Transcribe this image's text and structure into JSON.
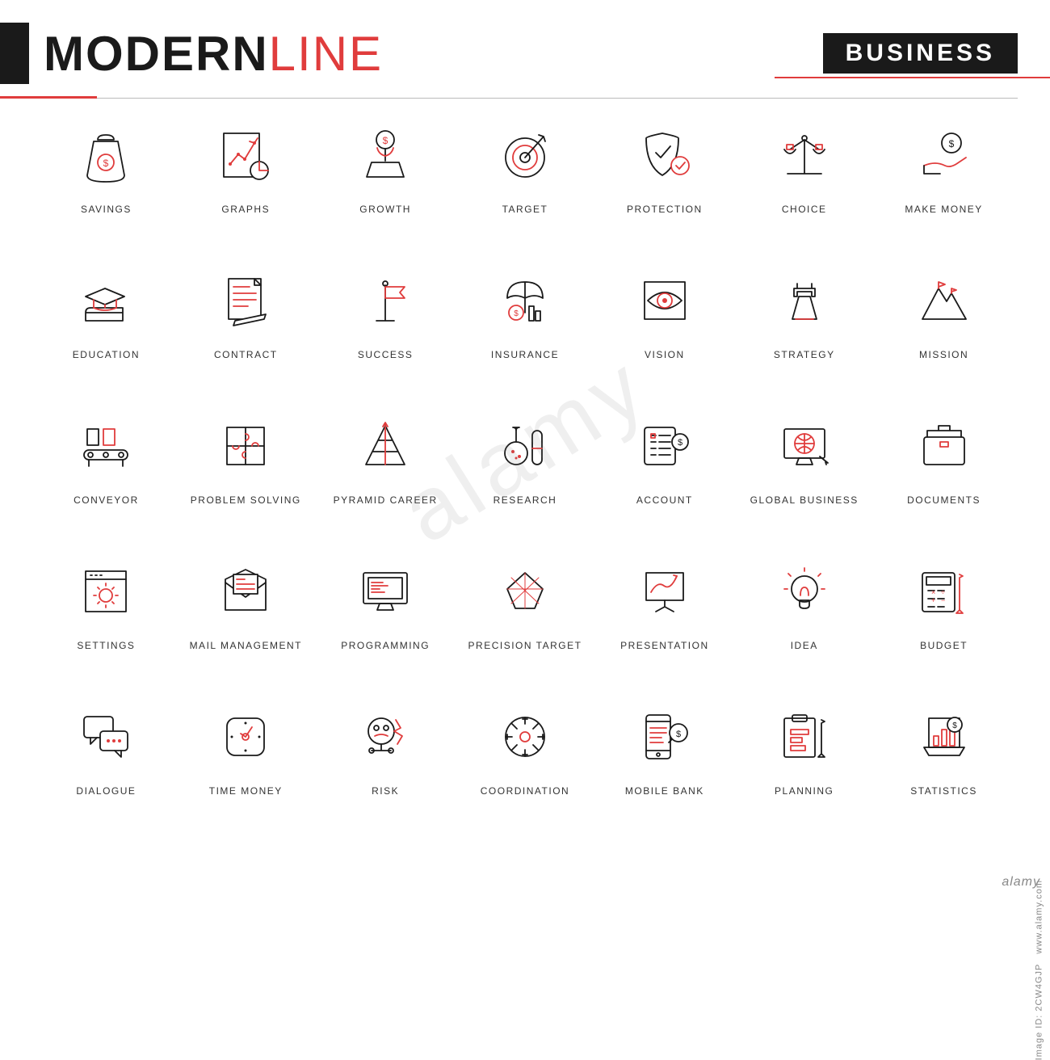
{
  "header": {
    "title_part1": "MODERN",
    "title_part2": "LINE",
    "badge": "BUSINESS"
  },
  "colors": {
    "black": "#1a1a1a",
    "red": "#e03c3c",
    "background": "#ffffff",
    "label": "#333333"
  },
  "stroke_width": 1.8,
  "grid": {
    "cols": 7,
    "rows": 5
  },
  "icons": [
    {
      "id": "savings-icon",
      "label": "SAVINGS"
    },
    {
      "id": "graphs-icon",
      "label": "GRAPHS"
    },
    {
      "id": "growth-icon",
      "label": "GROWTH"
    },
    {
      "id": "target-icon",
      "label": "TARGET"
    },
    {
      "id": "protection-icon",
      "label": "PROTECTION"
    },
    {
      "id": "choice-icon",
      "label": "CHOICE"
    },
    {
      "id": "make-money-icon",
      "label": "MAKE MONEY"
    },
    {
      "id": "education-icon",
      "label": "EDUCATION"
    },
    {
      "id": "contract-icon",
      "label": "CONTRACT"
    },
    {
      "id": "success-icon",
      "label": "SUCCESS"
    },
    {
      "id": "insurance-icon",
      "label": "INSURANCE"
    },
    {
      "id": "vision-icon",
      "label": "VISION"
    },
    {
      "id": "strategy-icon",
      "label": "STRATEGY"
    },
    {
      "id": "mission-icon",
      "label": "MISSION"
    },
    {
      "id": "conveyor-icon",
      "label": "CONVEYOR"
    },
    {
      "id": "problem-solving-icon",
      "label": "PROBLEM SOLVING"
    },
    {
      "id": "pyramid-career-icon",
      "label": "PYRAMID CAREER"
    },
    {
      "id": "research-icon",
      "label": "RESEARCH"
    },
    {
      "id": "account-icon",
      "label": "ACCOUNT"
    },
    {
      "id": "global-business-icon",
      "label": "GLOBAL BUSINESS"
    },
    {
      "id": "documents-icon",
      "label": "DOCUMENTS"
    },
    {
      "id": "settings-icon",
      "label": "SETTINGS"
    },
    {
      "id": "mail-management-icon",
      "label": "MAIL MANAGEMENT"
    },
    {
      "id": "programming-icon",
      "label": "PROGRAMMING"
    },
    {
      "id": "precision-target-icon",
      "label": "PRECISION TARGET"
    },
    {
      "id": "presentation-icon",
      "label": "PRESENTATION"
    },
    {
      "id": "idea-icon",
      "label": "IDEA"
    },
    {
      "id": "budget-icon",
      "label": "BUDGET"
    },
    {
      "id": "dialogue-icon",
      "label": "DIALOGUE"
    },
    {
      "id": "time-money-icon",
      "label": "TIME MONEY"
    },
    {
      "id": "risk-icon",
      "label": "RISK"
    },
    {
      "id": "coordination-icon",
      "label": "COORDINATION"
    },
    {
      "id": "mobile-bank-icon",
      "label": "MOBILE BANK"
    },
    {
      "id": "planning-icon",
      "label": "PLANNING"
    },
    {
      "id": "statistics-icon",
      "label": "STATISTICS"
    }
  ],
  "watermark": "alamy",
  "footer_credit": "alamy",
  "image_id_label": "Image ID: 2CW4GJP",
  "image_url": "www.alamy.com"
}
